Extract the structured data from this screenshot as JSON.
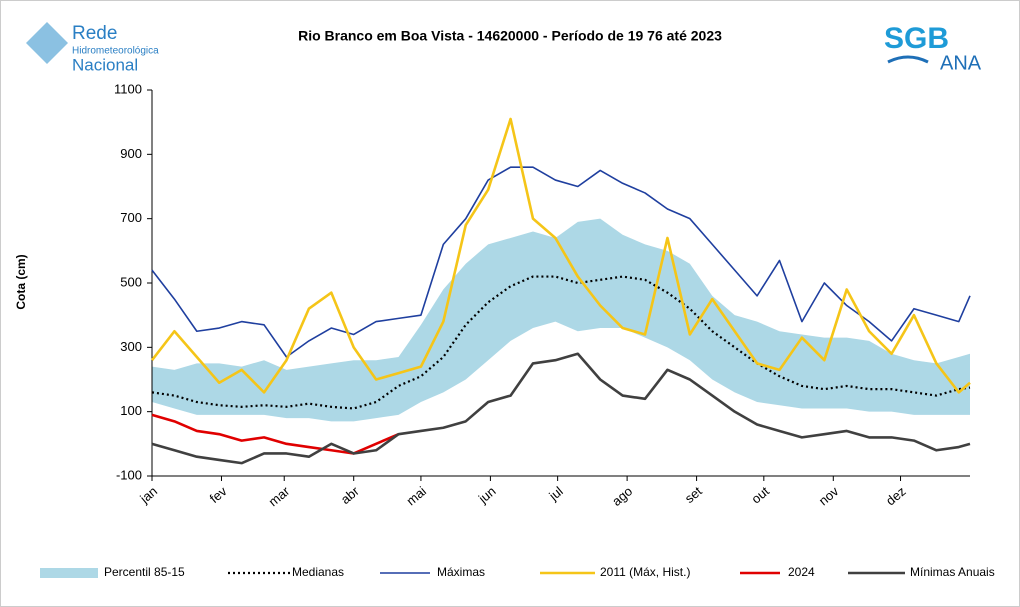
{
  "chart_data": {
    "type": "line",
    "title": "Rio Branco em Boa Vista - 14620000  - Período de 19 76 até 2023",
    "ylabel": "Cota (cm)",
    "logos": {
      "rede": "Rede",
      "hidro": "Hidrometeorológica",
      "nacional": "Nacional",
      "sgb": "SGB",
      "ana": "ANA"
    },
    "x": [
      1,
      11,
      21,
      31,
      41,
      51,
      61,
      71,
      81,
      91,
      101,
      111,
      121,
      131,
      141,
      151,
      161,
      171,
      181,
      191,
      201,
      211,
      221,
      231,
      241,
      251,
      261,
      271,
      281,
      291,
      301,
      311,
      321,
      331,
      341,
      351,
      361,
      366
    ],
    "xlim": [
      1,
      366
    ],
    "xticks": [
      {
        "value": 1,
        "label": "jan"
      },
      {
        "value": 32,
        "label": "fev"
      },
      {
        "value": 60,
        "label": "mar"
      },
      {
        "value": 91,
        "label": "abr"
      },
      {
        "value": 121,
        "label": "mai"
      },
      {
        "value": 152,
        "label": "jun"
      },
      {
        "value": 182,
        "label": "jul"
      },
      {
        "value": 213,
        "label": "ago"
      },
      {
        "value": 244,
        "label": "set"
      },
      {
        "value": 274,
        "label": "out"
      },
      {
        "value": 305,
        "label": "nov"
      },
      {
        "value": 335,
        "label": "dez"
      }
    ],
    "ylim": [
      -100,
      1100
    ],
    "yticks": [
      -100,
      100,
      300,
      500,
      700,
      900,
      1100
    ],
    "series": [
      {
        "name": "Percentil 85-15",
        "style": "band",
        "color": "#add8e6",
        "upper": [
          240,
          230,
          250,
          250,
          240,
          260,
          230,
          240,
          250,
          260,
          260,
          270,
          370,
          480,
          560,
          620,
          640,
          660,
          640,
          690,
          700,
          650,
          620,
          600,
          560,
          460,
          400,
          380,
          350,
          340,
          330,
          330,
          320,
          280,
          260,
          250,
          270,
          280
        ],
        "lower": [
          130,
          110,
          90,
          90,
          90,
          90,
          80,
          80,
          70,
          70,
          80,
          90,
          130,
          160,
          200,
          260,
          320,
          360,
          380,
          350,
          360,
          360,
          330,
          300,
          260,
          200,
          160,
          130,
          120,
          110,
          110,
          110,
          100,
          100,
          90,
          90,
          90,
          90
        ]
      },
      {
        "name": "Medianas",
        "style": "dotted",
        "color": "#000000",
        "values": [
          160,
          150,
          130,
          120,
          115,
          120,
          115,
          125,
          115,
          110,
          130,
          180,
          210,
          270,
          370,
          440,
          490,
          520,
          520,
          500,
          510,
          520,
          510,
          470,
          420,
          350,
          300,
          250,
          210,
          180,
          170,
          180,
          170,
          170,
          160,
          150,
          170,
          175
        ]
      },
      {
        "name": "Máximas",
        "style": "line",
        "color": "#1f3f9f",
        "values": [
          540,
          450,
          350,
          360,
          380,
          370,
          270,
          320,
          360,
          340,
          380,
          390,
          400,
          620,
          700,
          820,
          860,
          860,
          820,
          800,
          850,
          810,
          780,
          730,
          700,
          620,
          540,
          460,
          570,
          380,
          500,
          430,
          380,
          320,
          420,
          400,
          380,
          460
        ]
      },
      {
        "name": "2011 (Máx, Hist.)",
        "style": "thick",
        "color": "#f5c518",
        "values": [
          260,
          350,
          270,
          190,
          230,
          160,
          260,
          420,
          470,
          300,
          200,
          220,
          240,
          380,
          680,
          790,
          1010,
          700,
          640,
          520,
          430,
          360,
          340,
          640,
          340,
          450,
          350,
          250,
          230,
          330,
          260,
          480,
          350,
          280,
          400,
          250,
          160,
          190
        ]
      },
      {
        "name": "2024",
        "style": "thick",
        "color": "#e00000",
        "values": [
          90,
          70,
          40,
          30,
          10,
          20,
          0,
          -10,
          -20,
          -30,
          0,
          30,
          null,
          null,
          null,
          null,
          null,
          null,
          null,
          null,
          null,
          null,
          null,
          null,
          null,
          null,
          null,
          null,
          null,
          null,
          null,
          null,
          null,
          null,
          null,
          null,
          null,
          null
        ]
      },
      {
        "name": "Mínimas Anuais",
        "style": "thick",
        "color": "#404040",
        "values": [
          0,
          -20,
          -40,
          -50,
          -60,
          -30,
          -30,
          -40,
          0,
          -30,
          -20,
          30,
          40,
          50,
          70,
          130,
          150,
          250,
          260,
          280,
          200,
          150,
          140,
          230,
          200,
          150,
          100,
          60,
          40,
          20,
          30,
          40,
          20,
          20,
          10,
          -20,
          -10,
          0
        ]
      }
    ]
  }
}
